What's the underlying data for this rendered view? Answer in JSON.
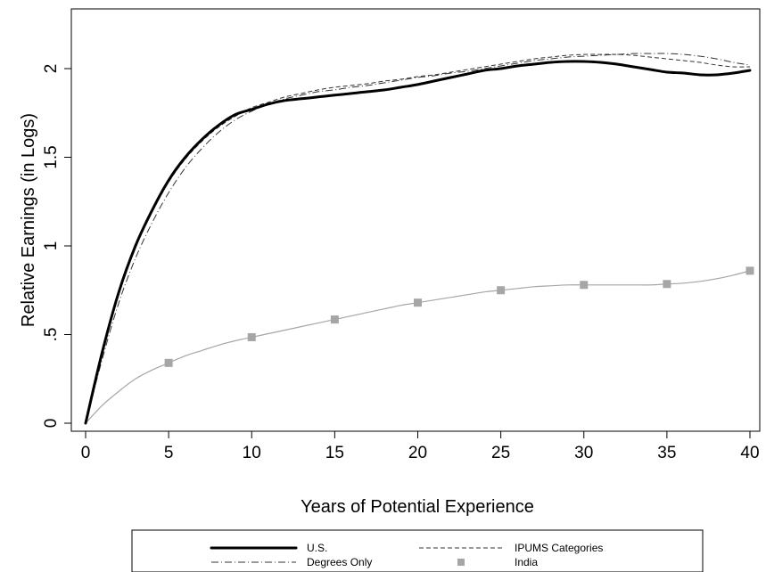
{
  "chart_data": {
    "type": "line",
    "xlabel": "Years of Potential Experience",
    "ylabel": "Relative Earnings (in Logs)",
    "xlim": [
      0,
      40
    ],
    "ylim": [
      -0.05,
      2.32
    ],
    "x_ticks": [
      0,
      5,
      10,
      15,
      20,
      25,
      30,
      35,
      40
    ],
    "y_ticks": [
      0,
      0.5,
      1,
      1.5,
      2
    ],
    "y_tick_labels": [
      "0",
      ".5",
      "1",
      "1.5",
      "2"
    ],
    "grid": false,
    "legend_position": "bottom",
    "series": [
      {
        "name": "U.S.",
        "style": "solid-thick",
        "color": "#000000",
        "x": [
          0,
          1,
          2,
          3,
          4,
          5,
          6,
          7,
          8,
          9,
          10,
          11,
          12,
          13,
          14,
          15,
          16,
          17,
          18,
          19,
          20,
          21,
          22,
          23,
          24,
          25,
          26,
          27,
          28,
          29,
          30,
          31,
          32,
          33,
          34,
          35,
          36,
          37,
          38,
          39,
          40
        ],
        "values": [
          0,
          0.4,
          0.74,
          1.0,
          1.2,
          1.37,
          1.5,
          1.6,
          1.68,
          1.74,
          1.77,
          1.8,
          1.82,
          1.83,
          1.84,
          1.85,
          1.86,
          1.87,
          1.88,
          1.895,
          1.91,
          1.93,
          1.95,
          1.97,
          1.99,
          2.0,
          2.015,
          2.025,
          2.035,
          2.04,
          2.04,
          2.035,
          2.025,
          2.01,
          1.995,
          1.98,
          1.975,
          1.965,
          1.965,
          1.975,
          1.99
        ]
      },
      {
        "name": "IPUMS Categories",
        "style": "dashed",
        "color": "#333333",
        "x": [
          0,
          1,
          2,
          3,
          4,
          5,
          6,
          7,
          8,
          9,
          10,
          11,
          12,
          13,
          14,
          15,
          16,
          17,
          18,
          19,
          20,
          21,
          22,
          23,
          24,
          25,
          26,
          27,
          28,
          29,
          30,
          31,
          32,
          33,
          34,
          35,
          36,
          37,
          38,
          39,
          40
        ],
        "values": [
          0,
          0.4,
          0.74,
          0.99,
          1.19,
          1.36,
          1.49,
          1.59,
          1.67,
          1.73,
          1.78,
          1.81,
          1.84,
          1.86,
          1.88,
          1.895,
          1.905,
          1.915,
          1.93,
          1.94,
          1.955,
          1.965,
          1.98,
          1.995,
          2.01,
          2.025,
          2.04,
          2.055,
          2.065,
          2.075,
          2.08,
          2.08,
          2.08,
          2.075,
          2.065,
          2.055,
          2.045,
          2.035,
          2.02,
          2.01,
          2.01
        ]
      },
      {
        "name": "Degrees Only",
        "style": "dash-dot",
        "color": "#333333",
        "x": [
          0,
          1,
          2,
          3,
          4,
          5,
          6,
          7,
          8,
          9,
          10,
          11,
          12,
          13,
          14,
          15,
          16,
          17,
          18,
          19,
          20,
          21,
          22,
          23,
          24,
          25,
          26,
          27,
          28,
          29,
          30,
          31,
          32,
          33,
          34,
          35,
          36,
          37,
          38,
          39,
          40
        ],
        "values": [
          0,
          0.36,
          0.68,
          0.93,
          1.13,
          1.3,
          1.44,
          1.55,
          1.64,
          1.71,
          1.76,
          1.8,
          1.83,
          1.85,
          1.87,
          1.88,
          1.895,
          1.905,
          1.92,
          1.935,
          1.95,
          1.96,
          1.975,
          1.985,
          2.0,
          2.015,
          2.03,
          2.045,
          2.055,
          2.065,
          2.07,
          2.075,
          2.08,
          2.085,
          2.085,
          2.085,
          2.08,
          2.07,
          2.055,
          2.035,
          2.02
        ]
      },
      {
        "name": "India",
        "style": "solid-thin-markers",
        "color": "#a6a6a6",
        "x": [
          0,
          1,
          2,
          3,
          4,
          5,
          6,
          7,
          8,
          9,
          10,
          11,
          12,
          13,
          14,
          15,
          16,
          17,
          18,
          19,
          20,
          21,
          22,
          23,
          24,
          25,
          26,
          27,
          28,
          29,
          30,
          31,
          32,
          33,
          34,
          35,
          36,
          37,
          38,
          39,
          40
        ],
        "values": [
          0,
          0.1,
          0.18,
          0.25,
          0.3,
          0.34,
          0.38,
          0.41,
          0.44,
          0.465,
          0.485,
          0.505,
          0.525,
          0.545,
          0.565,
          0.585,
          0.605,
          0.625,
          0.645,
          0.665,
          0.68,
          0.695,
          0.71,
          0.725,
          0.74,
          0.75,
          0.76,
          0.77,
          0.775,
          0.78,
          0.78,
          0.78,
          0.78,
          0.78,
          0.78,
          0.785,
          0.79,
          0.8,
          0.815,
          0.835,
          0.86
        ],
        "marker_x": [
          5,
          10,
          15,
          20,
          25,
          30,
          35,
          40
        ],
        "marker_values": [
          0.34,
          0.485,
          0.585,
          0.68,
          0.75,
          0.78,
          0.785,
          0.86
        ]
      }
    ]
  }
}
